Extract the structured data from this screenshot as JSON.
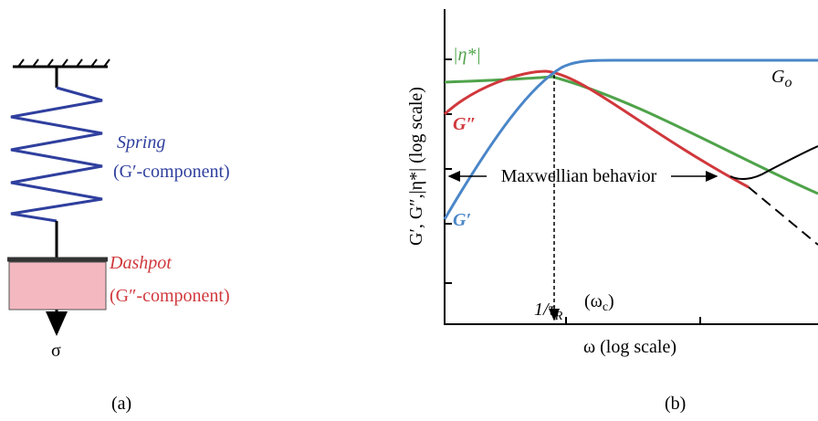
{
  "panel_a": {
    "spring": "Spring",
    "spring_component": "(G′-component)",
    "dashpot": "Dashpot",
    "dashpot_component": "(G″-component)",
    "stress": "σ",
    "caption": "(a)"
  },
  "panel_b": {
    "y_axis_label": "G′, G″,|η*| (log scale)",
    "x_axis_label": "ω (log scale)",
    "eta_label": "|η*|",
    "g2_label": "G″",
    "g1_label": "G′",
    "plateau_label": {
      "main": "G",
      "sub": "o"
    },
    "maxwell_label": "Maxwellian behavior",
    "relax_label": {
      "main": "1/τ",
      "sub": "R"
    },
    "crossover_label": {
      "main": "(ω",
      "sub": "c",
      "end": ")"
    },
    "caption": "(b)"
  }
}
